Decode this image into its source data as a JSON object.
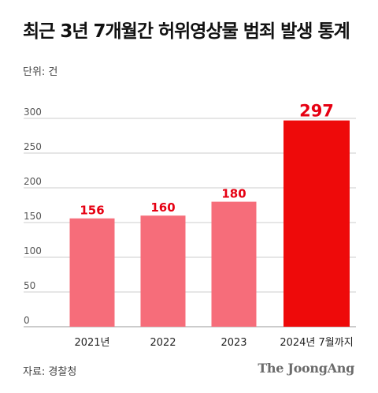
{
  "title": "최근 3년 7개월간 허위영상물 범죄 발생 통계",
  "unit_label": "단위: 건",
  "source_label": "자료: 경찰청",
  "brand": "The JoongAng",
  "colors": {
    "bar": "#f66d7a",
    "highlight_bar": "#ee0a0a",
    "value_label": "#e60012",
    "grid": "#cccccc",
    "axis_text": "#555555"
  },
  "chart_data": {
    "type": "bar",
    "categories": [
      "2021년",
      "2022",
      "2023",
      "2024년 7월까지"
    ],
    "values": [
      156,
      160,
      180,
      297
    ],
    "highlight_index": 3,
    "ylim": [
      0,
      300
    ],
    "yticks": [
      0,
      50,
      100,
      150,
      200,
      250,
      300
    ],
    "grid": true
  }
}
